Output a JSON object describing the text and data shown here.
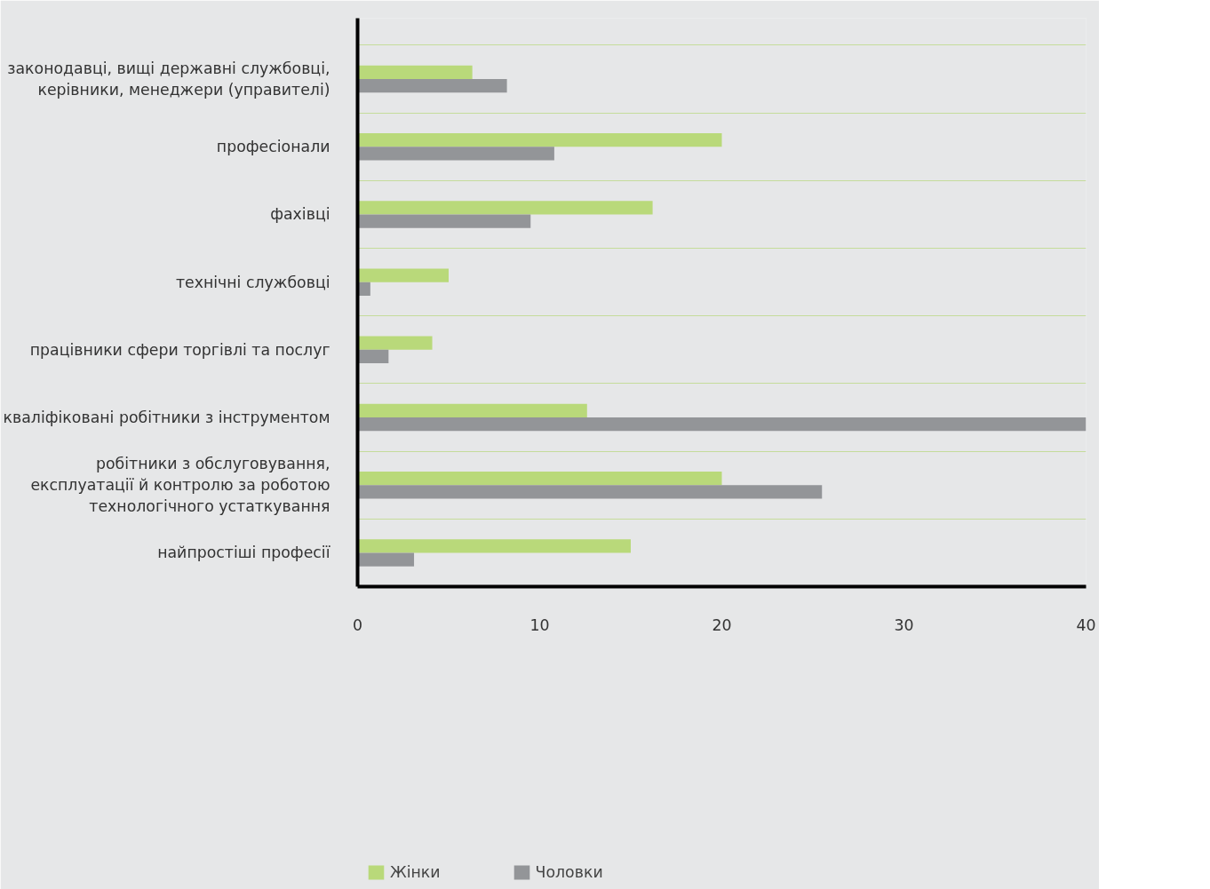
{
  "chart_data": {
    "type": "bar",
    "orientation": "horizontal",
    "categories": [
      "законодавці, вищі державні службовці, керівники, менеджери (управителі)",
      "професіонали",
      "фахівці",
      "технічні службовці",
      "працівники сфери торгівлі та послуг",
      "кваліфіковані робітники з інструментом",
      "робітники з обслуговування, експлуатації й контролю за роботою технологічного устаткування",
      "найпростіші професії"
    ],
    "series": [
      {
        "name": "Жінки",
        "color": "#b9d97a",
        "values": [
          6.3,
          20,
          16.2,
          5.0,
          4.1,
          12.6,
          20,
          15.0
        ]
      },
      {
        "name": "Чоловки",
        "color": "#939598",
        "values": [
          8.2,
          10.8,
          9.5,
          0.7,
          1.7,
          40,
          25.5,
          3.1
        ]
      }
    ],
    "xlim": [
      0,
      40
    ],
    "xticks": [
      0,
      10,
      20,
      30,
      40
    ],
    "grid": "y",
    "legend": "bottom"
  }
}
